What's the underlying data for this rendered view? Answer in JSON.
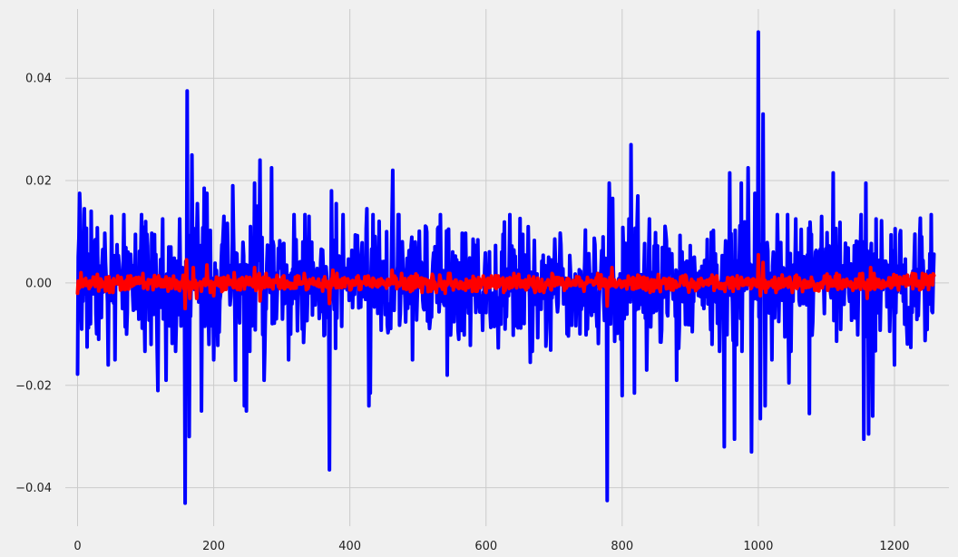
{
  "chart_data": {
    "type": "line",
    "title": "",
    "xlabel": "",
    "ylabel": "",
    "xlim": [
      -18,
      1280
    ],
    "ylim": [
      -0.0475,
      0.0535
    ],
    "grid": true,
    "legend": "none",
    "background_color": "#f0f0f0",
    "grid_color": "#cbcbcb",
    "x_ticks": [
      0,
      200,
      400,
      600,
      800,
      1000,
      1200
    ],
    "x_tick_labels": [
      "0",
      "200",
      "400",
      "600",
      "800",
      "1000",
      "1200"
    ],
    "y_ticks": [
      -0.04,
      -0.02,
      0.0,
      0.02,
      0.04
    ],
    "y_tick_labels": [
      "−0.04",
      "−0.02",
      "0.00",
      "0.02",
      "0.04"
    ],
    "x_range": [
      0,
      1258
    ],
    "series": [
      {
        "color": "#0000ff",
        "stroke_width": 4,
        "base_std": 0.0058,
        "noise_seed": 7,
        "peaks": [
          [
            0,
            -0.0178
          ],
          [
            3,
            0.0175
          ],
          [
            6,
            -0.009
          ],
          [
            10,
            0.0145
          ],
          [
            14,
            -0.0125
          ],
          [
            20,
            0.014
          ],
          [
            45,
            -0.016
          ],
          [
            50,
            0.013
          ],
          [
            55,
            -0.015
          ],
          [
            85,
            0.0095
          ],
          [
            100,
            0.012
          ],
          [
            108,
            -0.012
          ],
          [
            118,
            -0.021
          ],
          [
            125,
            0.0125
          ],
          [
            130,
            -0.019
          ],
          [
            150,
            0.0125
          ],
          [
            158,
            -0.043
          ],
          [
            161,
            0.0375
          ],
          [
            164,
            -0.03
          ],
          [
            168,
            0.025
          ],
          [
            176,
            0.0155
          ],
          [
            182,
            -0.025
          ],
          [
            186,
            0.0185
          ],
          [
            190,
            0.0175
          ],
          [
            200,
            -0.015
          ],
          [
            215,
            0.013
          ],
          [
            228,
            0.019
          ],
          [
            232,
            -0.019
          ],
          [
            245,
            -0.024
          ],
          [
            248,
            -0.025
          ],
          [
            260,
            0.0195
          ],
          [
            264,
            0.015
          ],
          [
            268,
            0.024
          ],
          [
            274,
            -0.019
          ],
          [
            285,
            0.0225
          ],
          [
            310,
            -0.015
          ],
          [
            330,
            -0.009
          ],
          [
            340,
            0.013
          ],
          [
            370,
            -0.0365
          ],
          [
            373,
            0.018
          ],
          [
            380,
            0.0155
          ],
          [
            425,
            0.0145
          ],
          [
            428,
            -0.024
          ],
          [
            430,
            -0.0215
          ],
          [
            463,
            0.022
          ],
          [
            492,
            -0.015
          ],
          [
            543,
            -0.018
          ],
          [
            545,
            0.0105
          ],
          [
            560,
            -0.011
          ],
          [
            625,
            0.0095
          ],
          [
            628,
            -0.009
          ],
          [
            654,
            0.0095
          ],
          [
            662,
            0.011
          ],
          [
            665,
            -0.0155
          ],
          [
            772,
            0.009
          ],
          [
            778,
            -0.0425
          ],
          [
            781,
            0.0195
          ],
          [
            786,
            0.0165
          ],
          [
            800,
            -0.022
          ],
          [
            810,
            0.0125
          ],
          [
            813,
            0.027
          ],
          [
            818,
            -0.0215
          ],
          [
            823,
            0.017
          ],
          [
            836,
            -0.017
          ],
          [
            840,
            0.0125
          ],
          [
            880,
            -0.019
          ],
          [
            950,
            -0.032
          ],
          [
            958,
            0.0215
          ],
          [
            965,
            -0.0305
          ],
          [
            975,
            0.0195
          ],
          [
            985,
            0.0225
          ],
          [
            990,
            -0.033
          ],
          [
            995,
            0.0175
          ],
          [
            1000,
            0.049
          ],
          [
            1003,
            -0.0265
          ],
          [
            1007,
            0.033
          ],
          [
            1010,
            -0.024
          ],
          [
            1020,
            -0.015
          ],
          [
            1045,
            -0.0195
          ],
          [
            1055,
            0.0125
          ],
          [
            1075,
            -0.0255
          ],
          [
            1078,
            0.0095
          ],
          [
            1110,
            0.0215
          ],
          [
            1155,
            -0.0305
          ],
          [
            1158,
            0.0195
          ],
          [
            1162,
            -0.0295
          ],
          [
            1168,
            -0.026
          ],
          [
            1173,
            0.0125
          ],
          [
            1200,
            -0.016
          ],
          [
            1208,
            0.0095
          ],
          [
            1220,
            -0.0095
          ],
          [
            1240,
            0.009
          ],
          [
            1255,
            -0.0055
          ]
        ]
      },
      {
        "color": "#ff0000",
        "stroke_width": 4,
        "base_std": 0.0008,
        "noise_seed": 13,
        "peaks": [
          [
            0,
            -0.002
          ],
          [
            5,
            0.002
          ],
          [
            150,
            -0.0015
          ],
          [
            158,
            -0.005
          ],
          [
            160,
            0.0045
          ],
          [
            165,
            -0.003
          ],
          [
            170,
            0.003
          ],
          [
            175,
            -0.003
          ],
          [
            190,
            0.0035
          ],
          [
            200,
            -0.0025
          ],
          [
            230,
            0.002
          ],
          [
            260,
            0.003
          ],
          [
            268,
            -0.0035
          ],
          [
            370,
            -0.004
          ],
          [
            375,
            0.0025
          ],
          [
            462,
            0.0025
          ],
          [
            540,
            -0.002
          ],
          [
            778,
            -0.0045
          ],
          [
            785,
            0.003
          ],
          [
            1000,
            0.0055
          ],
          [
            1003,
            -0.0025
          ],
          [
            1007,
            0.004
          ],
          [
            1160,
            -0.003
          ],
          [
            1165,
            0.003
          ],
          [
            1255,
            0.0005
          ]
        ]
      }
    ]
  }
}
